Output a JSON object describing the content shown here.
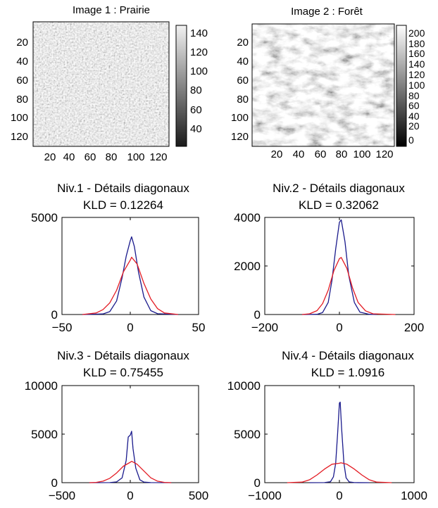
{
  "colors": {
    "series_a": "#1a1a8c",
    "series_b": "#e31b23"
  },
  "images": [
    {
      "title": "Image 1 : Prairie",
      "type": "heatmap",
      "texture": "fine",
      "x_ticks": [
        "20",
        "40",
        "60",
        "80",
        "100",
        "120"
      ],
      "y_ticks": [
        "20",
        "40",
        "60",
        "80",
        "100",
        "120"
      ],
      "colorbar": {
        "ticks": [
          "140",
          "120",
          "100",
          "80",
          "60",
          "40"
        ],
        "range": [
          25,
          148
        ]
      }
    },
    {
      "title": "Image 2 : Forêt",
      "type": "heatmap",
      "texture": "coarse",
      "x_ticks": [
        "20",
        "40",
        "60",
        "80",
        "100",
        "120"
      ],
      "y_ticks": [
        "20",
        "40",
        "60",
        "80",
        "100",
        "120"
      ],
      "colorbar": {
        "ticks": [
          "200",
          "180",
          "160",
          "140",
          "120",
          "100",
          "80",
          "60",
          "40",
          "20",
          "0"
        ],
        "range": [
          0,
          210
        ]
      }
    }
  ],
  "chart_data": [
    {
      "type": "line",
      "title": "Niv.1 - Détails diagonaux",
      "subtitle": "KLD = 0.12264",
      "xlim": [
        -50,
        50
      ],
      "ylim": [
        0,
        5000
      ],
      "x_ticks": [
        -50,
        0,
        50
      ],
      "y_ticks": [
        0,
        5000
      ],
      "x_tick_labels": [
        "−50",
        "0",
        "50"
      ],
      "y_tick_labels": [
        "0",
        "5000"
      ],
      "series": [
        {
          "color_key": "series_a",
          "x": [
            -35,
            -20,
            -15,
            -10,
            -6,
            -3,
            0,
            1,
            3,
            6,
            10,
            15,
            20,
            35
          ],
          "y": [
            0,
            30,
            150,
            700,
            1900,
            3000,
            3800,
            4000,
            3500,
            2200,
            900,
            200,
            40,
            0
          ]
        },
        {
          "color_key": "series_b",
          "x": [
            -35,
            -25,
            -20,
            -15,
            -10,
            -5,
            0,
            1,
            5,
            10,
            15,
            20,
            25,
            35
          ],
          "y": [
            0,
            80,
            250,
            600,
            1250,
            2200,
            2800,
            2950,
            2600,
            1600,
            800,
            300,
            80,
            0
          ]
        }
      ]
    },
    {
      "type": "line",
      "title": "Niv.2 - Détails diagonaux",
      "subtitle": "KLD = 0.32062",
      "xlim": [
        -200,
        200
      ],
      "ylim": [
        0,
        4000
      ],
      "x_ticks": [
        -200,
        0,
        200
      ],
      "y_ticks": [
        0,
        2000,
        4000
      ],
      "x_tick_labels": [
        "−200",
        "0",
        "200"
      ],
      "y_tick_labels": [
        "0",
        "2000",
        "4000"
      ],
      "series": [
        {
          "color_key": "series_a",
          "x": [
            -100,
            -60,
            -45,
            -30,
            -20,
            -10,
            0,
            5,
            15,
            25,
            40,
            55,
            80,
            100
          ],
          "y": [
            0,
            10,
            80,
            500,
            1400,
            2700,
            3800,
            3900,
            3000,
            1600,
            500,
            100,
            10,
            0
          ]
        },
        {
          "color_key": "series_b",
          "x": [
            -100,
            -80,
            -60,
            -45,
            -30,
            -15,
            0,
            5,
            20,
            35,
            50,
            70,
            90,
            150
          ],
          "y": [
            0,
            30,
            160,
            450,
            1000,
            1800,
            2300,
            2350,
            1900,
            1100,
            500,
            150,
            30,
            0
          ]
        }
      ]
    },
    {
      "type": "line",
      "title": "Niv.3 - Détails diagonaux",
      "subtitle": "KLD = 0.75455",
      "xlim": [
        -500,
        500
      ],
      "ylim": [
        0,
        10000
      ],
      "x_ticks": [
        -500,
        0,
        500
      ],
      "y_ticks": [
        0,
        5000,
        10000
      ],
      "x_tick_labels": [
        "−500",
        "0",
        "500"
      ],
      "y_tick_labels": [
        "0",
        "5000",
        "10000"
      ],
      "series": [
        {
          "color_key": "series_a",
          "x": [
            -300,
            -150,
            -100,
            -60,
            -30,
            -15,
            0,
            10,
            20,
            40,
            70,
            100,
            150,
            300
          ],
          "y": [
            0,
            10,
            80,
            500,
            2300,
            4700,
            4900,
            5300,
            3500,
            1500,
            300,
            60,
            5,
            0
          ]
        },
        {
          "color_key": "series_b",
          "x": [
            -300,
            -250,
            -200,
            -150,
            -100,
            -50,
            0,
            10,
            50,
            100,
            150,
            200,
            250,
            300
          ],
          "y": [
            0,
            30,
            150,
            450,
            1000,
            1700,
            2100,
            2200,
            1900,
            1200,
            500,
            150,
            30,
            0
          ]
        }
      ]
    },
    {
      "type": "line",
      "title": "Niv.4 - Détails diagonaux",
      "subtitle": "KLD = 1.0916",
      "xlim": [
        -1000,
        1000
      ],
      "ylim": [
        0,
        10000
      ],
      "x_ticks": [
        -1000,
        0,
        1000
      ],
      "y_ticks": [
        0,
        5000,
        10000
      ],
      "x_tick_labels": [
        "−1000",
        "0",
        "1000"
      ],
      "y_tick_labels": [
        "0",
        "5000",
        "10000"
      ],
      "series": [
        {
          "color_key": "series_a",
          "x": [
            -400,
            -200,
            -120,
            -80,
            -50,
            -25,
            0,
            10,
            30,
            60,
            90,
            130,
            200,
            400
          ],
          "y": [
            0,
            5,
            100,
            600,
            2000,
            5000,
            8200,
            8300,
            5500,
            2000,
            500,
            80,
            5,
            0
          ]
        },
        {
          "color_key": "series_b",
          "x": [
            -700,
            -500,
            -400,
            -300,
            -200,
            -100,
            0,
            20,
            100,
            200,
            300,
            400,
            500,
            700
          ],
          "y": [
            0,
            60,
            300,
            800,
            1400,
            1900,
            2000,
            2050,
            1900,
            1400,
            800,
            300,
            60,
            0
          ]
        }
      ]
    }
  ]
}
